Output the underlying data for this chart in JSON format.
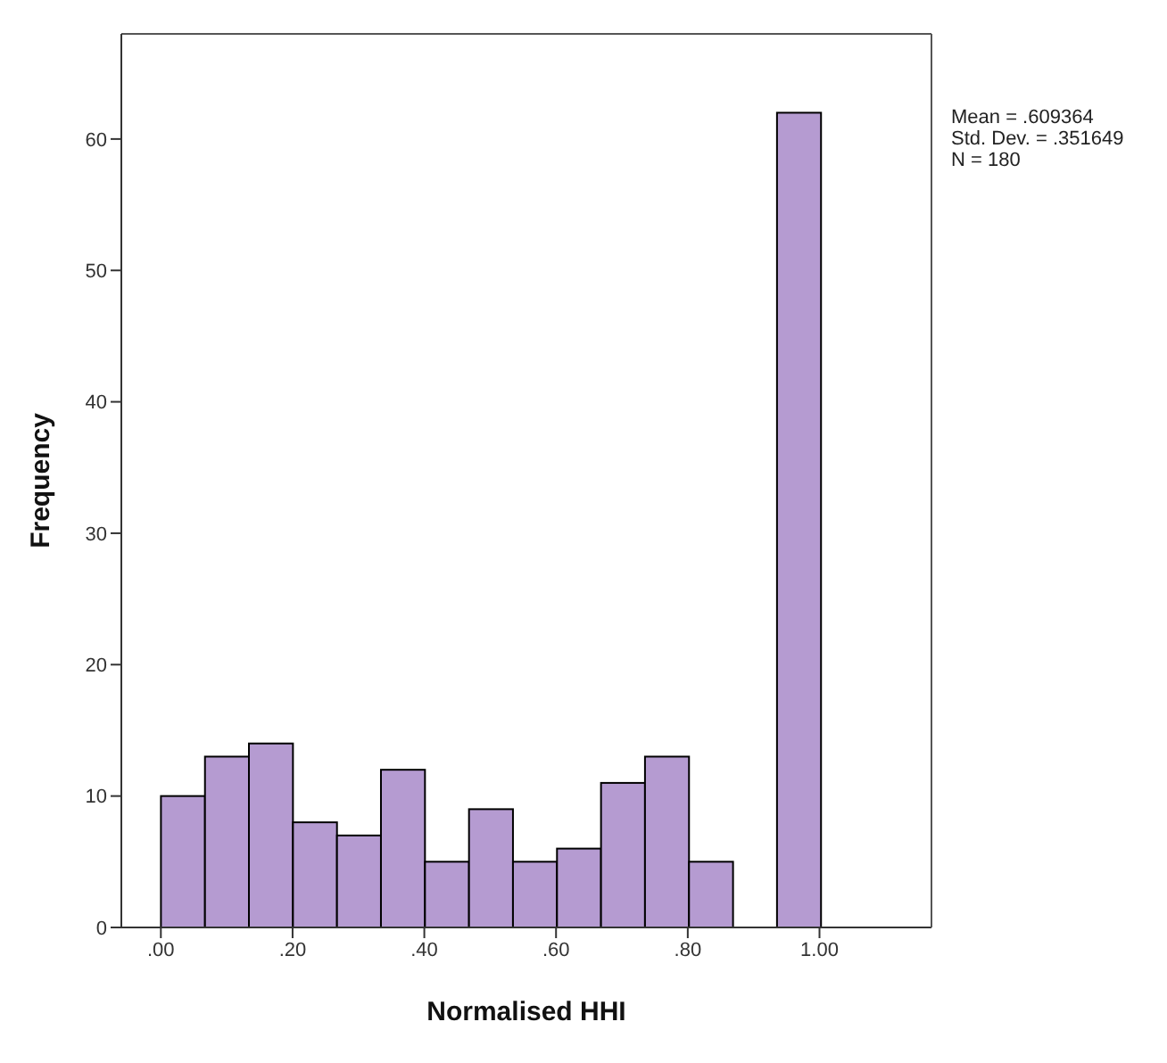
{
  "chart_data": {
    "type": "histogram",
    "xlabel": "Normalised HHI",
    "ylabel": "Frequency",
    "bins": [
      0,
      0.0667,
      0.1333,
      0.2,
      0.2667,
      0.3333,
      0.4,
      0.4667,
      0.5333,
      0.6,
      0.6667,
      0.7333,
      0.8,
      0.8667,
      0.9333,
      1.0
    ],
    "values": [
      10,
      13,
      14,
      8,
      7,
      12,
      5,
      9,
      5,
      6,
      11,
      13,
      5,
      0,
      62
    ],
    "color": "#b59bd1",
    "xlim": [
      -0.06,
      1.17
    ],
    "xticks": [
      {
        "value": 0,
        "label": ".00"
      },
      {
        "value": 0.2,
        "label": ".20"
      },
      {
        "value": 0.4,
        "label": ".40"
      },
      {
        "value": 0.6,
        "label": ".60"
      },
      {
        "value": 0.8,
        "label": ".80"
      },
      {
        "value": 1.0,
        "label": "1.00"
      }
    ],
    "ylim": [
      0,
      68
    ],
    "yticks": [
      0,
      10,
      20,
      30,
      40,
      50,
      60
    ],
    "grid": false,
    "annotations": [
      "Mean = .609364",
      "Std. Dev. = .351649",
      "N = 180"
    ]
  }
}
